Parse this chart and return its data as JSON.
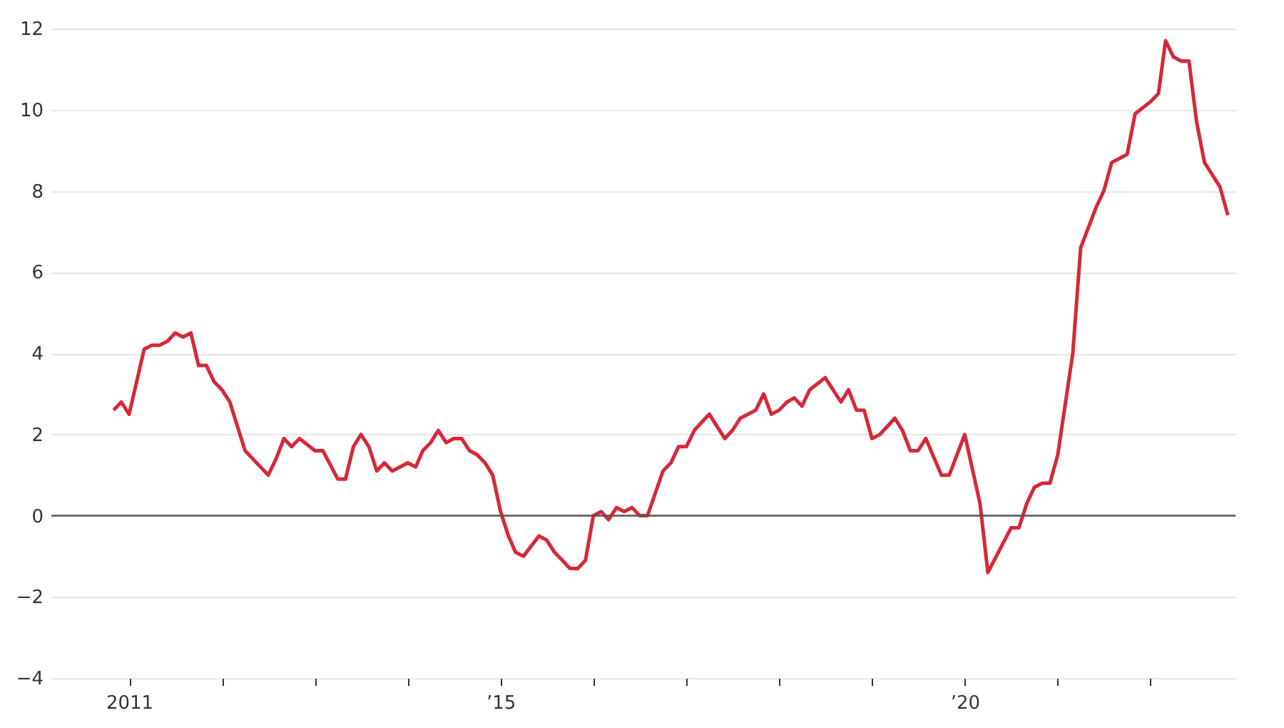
{
  "chart_data": {
    "type": "line",
    "x": [
      "2010-11",
      "2010-12",
      "2011-01",
      "2011-03",
      "2011-04",
      "2011-05",
      "2011-06",
      "2011-07",
      "2011-08",
      "2011-09",
      "2011-10",
      "2011-11",
      "2011-12",
      "2012-01",
      "2012-02",
      "2012-04",
      "2012-07",
      "2012-08",
      "2012-09",
      "2012-10",
      "2012-11",
      "2013-01",
      "2013-02",
      "2013-04",
      "2013-05",
      "2013-06",
      "2013-07",
      "2013-08",
      "2013-09",
      "2013-10",
      "2013-11",
      "2014-01",
      "2014-02",
      "2014-03",
      "2014-04",
      "2014-05",
      "2014-06",
      "2014-07",
      "2014-08",
      "2014-09",
      "2014-10",
      "2014-11",
      "2014-12",
      "2015-01",
      "2015-02",
      "2015-03",
      "2015-04",
      "2015-06",
      "2015-07",
      "2015-08",
      "2015-09",
      "2015-10",
      "2015-11",
      "2015-12",
      "2016-01",
      "2016-02",
      "2016-03",
      "2016-04",
      "2016-05",
      "2016-06",
      "2016-07",
      "2016-08",
      "2016-10",
      "2016-11",
      "2016-12",
      "2017-01",
      "2017-02",
      "2017-04",
      "2017-06",
      "2017-07",
      "2017-08",
      "2017-10",
      "2017-11",
      "2017-12",
      "2018-01",
      "2018-02",
      "2018-03",
      "2018-04",
      "2018-05",
      "2018-07",
      "2018-09",
      "2018-10",
      "2018-11",
      "2018-12",
      "2019-01",
      "2019-02",
      "2019-04",
      "2019-05",
      "2019-06",
      "2019-07",
      "2019-08",
      "2019-10",
      "2019-11",
      "2020-01",
      "2020-03",
      "2020-04",
      "2020-07",
      "2020-08",
      "2020-09",
      "2020-10",
      "2020-11",
      "2020-12",
      "2021-01",
      "2021-03",
      "2021-04",
      "2021-06",
      "2021-07",
      "2021-08",
      "2021-10",
      "2021-11",
      "2022-01",
      "2022-02",
      "2022-03",
      "2022-04",
      "2022-05",
      "2022-06",
      "2022-07",
      "2022-08",
      "2022-10",
      "2022-11"
    ],
    "series": [
      {
        "color": "#d62839",
        "values": [
          2.6,
          2.8,
          2.5,
          4.1,
          4.2,
          4.2,
          4.3,
          4.5,
          4.4,
          4.5,
          3.7,
          3.7,
          3.3,
          3.1,
          2.8,
          1.6,
          1.0,
          1.4,
          1.9,
          1.7,
          1.9,
          1.6,
          1.6,
          0.9,
          0.9,
          1.7,
          2.0,
          1.7,
          1.1,
          1.3,
          1.1,
          1.3,
          1.2,
          1.6,
          1.8,
          2.1,
          1.8,
          1.9,
          1.9,
          1.6,
          1.5,
          1.3,
          1.0,
          0.1,
          -0.5,
          -0.9,
          -1.0,
          -0.5,
          -0.6,
          -0.9,
          -1.1,
          -1.3,
          -1.3,
          -1.1,
          0.0,
          0.1,
          -0.1,
          0.2,
          0.1,
          0.2,
          0.0,
          0.0,
          1.1,
          1.3,
          1.7,
          1.7,
          2.1,
          2.5,
          1.9,
          2.1,
          2.4,
          2.6,
          3.0,
          2.5,
          2.6,
          2.8,
          2.9,
          2.7,
          3.1,
          3.4,
          2.8,
          3.1,
          2.6,
          2.6,
          1.9,
          2.0,
          2.4,
          2.1,
          1.6,
          1.6,
          1.9,
          1.0,
          1.0,
          2.0,
          0.3,
          -1.4,
          -0.3,
          -0.3,
          0.3,
          0.7,
          0.8,
          0.8,
          1.5,
          4.0,
          6.6,
          7.6,
          8.0,
          8.7,
          8.9,
          9.9,
          10.2,
          10.4,
          11.7,
          11.3,
          11.2,
          11.2,
          9.7,
          8.7,
          8.1,
          7.4
        ]
      }
    ],
    "xlim": [
      "2010-03",
      "2022-12"
    ],
    "xticks": [
      {
        "value": "2011",
        "label": "2011"
      },
      {
        "value": "2012",
        "label": null
      },
      {
        "value": "2013",
        "label": null
      },
      {
        "value": "2014",
        "label": null
      },
      {
        "value": "2015",
        "label": "’15"
      },
      {
        "value": "2016",
        "label": null
      },
      {
        "value": "2017",
        "label": null
      },
      {
        "value": "2018",
        "label": null
      },
      {
        "value": "2019",
        "label": null
      },
      {
        "value": "2020",
        "label": "’20"
      },
      {
        "value": "2021",
        "label": null
      },
      {
        "value": "2022",
        "label": null
      }
    ],
    "ylim": [
      -4,
      12
    ],
    "yticks": [
      -4,
      -2,
      0,
      2,
      4,
      6,
      8,
      10,
      12
    ],
    "grid": "y",
    "marker": "none",
    "line_style": "solid",
    "ref_lines": [
      {
        "axis": "y",
        "value": 0,
        "color": "#555555"
      }
    ]
  }
}
